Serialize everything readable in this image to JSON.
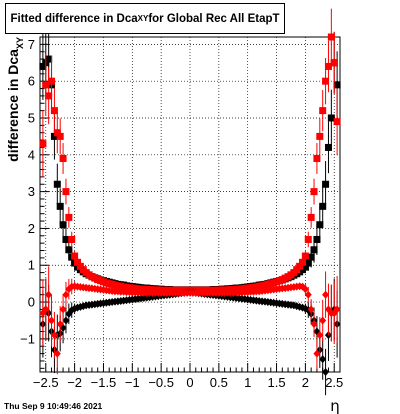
{
  "header": {
    "title_prefix": "Fitted difference in Dca",
    "title_sub": "XY",
    "title_suffix": " for Global Rec All EtapT"
  },
  "footer": {
    "timestamp": "Thu Sep  9 10:49:46 2021"
  },
  "chart_data": {
    "type": "scatter",
    "title": "Fitted difference in Dca_XY for Global Rec All EtapT",
    "xlabel": "η",
    "ylabel": "difference in Dca_XY",
    "xlim": [
      -2.6,
      2.6
    ],
    "ylim": [
      -1.9,
      7.2
    ],
    "x_ticks": [
      -2.5,
      -2,
      -1.5,
      -1,
      -0.5,
      0,
      0.5,
      1,
      1.5,
      2,
      2.5
    ],
    "x_tick_labels": [
      "−2.5",
      "−2",
      "−1.5",
      "−1",
      "−0.5",
      "0",
      "0.5",
      "1",
      "1.5",
      "2",
      "2.5"
    ],
    "y_ticks": [
      -1,
      0,
      1,
      2,
      3,
      4,
      5,
      6,
      7
    ],
    "y_tick_labels": [
      "−1",
      "0",
      "1",
      "2",
      "3",
      "4",
      "5",
      "6",
      "7"
    ],
    "grid": true,
    "series": [
      {
        "color": "#000000",
        "markers": "square",
        "x": [
          -2.55,
          -2.5,
          -2.45,
          -2.4,
          -2.35,
          -2.3,
          -2.25,
          -2.2,
          -2.15,
          -2.1,
          -2.05,
          -2.0,
          -1.95,
          -1.9,
          -1.85,
          -1.8,
          -1.75,
          -1.7,
          -1.65,
          -1.6,
          -1.55,
          -1.5,
          -1.45,
          -1.4,
          -1.35,
          -1.3,
          -1.25,
          -1.2,
          -1.15,
          -1.1,
          -1.05,
          -1.0,
          -0.95,
          -0.9,
          -0.85,
          -0.8,
          -0.75,
          -0.7,
          -0.65,
          -0.6,
          -0.55,
          -0.5,
          -0.45,
          -0.4,
          -0.35,
          -0.3,
          -0.25,
          -0.2,
          -0.15,
          -0.1,
          -0.05,
          0.0,
          0.05,
          0.1,
          0.15,
          0.2,
          0.25,
          0.3,
          0.35,
          0.4,
          0.45,
          0.5,
          0.55,
          0.6,
          0.65,
          0.7,
          0.75,
          0.8,
          0.85,
          0.9,
          0.95,
          1.0,
          1.05,
          1.1,
          1.15,
          1.2,
          1.25,
          1.3,
          1.35,
          1.4,
          1.45,
          1.5,
          1.55,
          1.6,
          1.65,
          1.7,
          1.75,
          1.8,
          1.85,
          1.9,
          1.95,
          2.0,
          2.05,
          2.1,
          2.15,
          2.2,
          2.25,
          2.3,
          2.35,
          2.4,
          2.45,
          2.5,
          2.55
        ],
        "y": [
          6.4,
          6.5,
          6.6,
          5.9,
          4.5,
          3.2,
          2.6,
          2.1,
          1.7,
          1.42,
          1.22,
          1.06,
          0.95,
          0.88,
          0.82,
          0.77,
          0.73,
          0.69,
          0.66,
          0.63,
          0.6,
          0.58,
          0.56,
          0.54,
          0.52,
          0.5,
          0.48,
          0.47,
          0.46,
          0.44,
          0.43,
          0.42,
          0.41,
          0.4,
          0.39,
          0.38,
          0.38,
          0.37,
          0.36,
          0.36,
          0.35,
          0.35,
          0.34,
          0.34,
          0.34,
          0.33,
          0.33,
          0.33,
          0.33,
          0.33,
          0.33,
          0.33,
          0.33,
          0.33,
          0.33,
          0.33,
          0.33,
          0.33,
          0.33,
          0.34,
          0.34,
          0.34,
          0.35,
          0.35,
          0.36,
          0.36,
          0.37,
          0.38,
          0.38,
          0.39,
          0.4,
          0.41,
          0.42,
          0.43,
          0.44,
          0.46,
          0.47,
          0.48,
          0.5,
          0.52,
          0.54,
          0.56,
          0.58,
          0.6,
          0.63,
          0.66,
          0.69,
          0.73,
          0.77,
          0.82,
          0.88,
          0.95,
          1.06,
          1.22,
          1.42,
          1.7,
          2.1,
          2.6,
          3.2,
          4.2,
          5.0,
          6.5,
          5.9
        ]
      },
      {
        "color": "#ff0000",
        "markers": "square",
        "x": [
          -2.55,
          -2.5,
          -2.45,
          -2.4,
          -2.35,
          -2.3,
          -2.25,
          -2.2,
          -2.15,
          -2.1,
          -2.05,
          -2.0,
          -1.95,
          -1.9,
          -1.85,
          -1.8,
          -1.75,
          -1.7,
          -1.65,
          -1.6,
          -1.55,
          -1.5,
          -1.45,
          -1.4,
          -1.35,
          -1.3,
          -1.25,
          -1.2,
          -1.15,
          -1.1,
          -1.05,
          -1.0,
          -0.95,
          -0.9,
          -0.85,
          -0.8,
          -0.75,
          -0.7,
          -0.65,
          -0.6,
          -0.55,
          -0.5,
          -0.45,
          -0.4,
          -0.35,
          -0.3,
          -0.25,
          -0.2,
          -0.15,
          -0.1,
          -0.05,
          0.0,
          0.05,
          0.1,
          0.15,
          0.2,
          0.25,
          0.3,
          0.35,
          0.4,
          0.45,
          0.5,
          0.55,
          0.6,
          0.65,
          0.7,
          0.75,
          0.8,
          0.85,
          0.9,
          0.95,
          1.0,
          1.05,
          1.1,
          1.15,
          1.2,
          1.25,
          1.3,
          1.35,
          1.4,
          1.45,
          1.5,
          1.55,
          1.6,
          1.65,
          1.7,
          1.75,
          1.8,
          1.85,
          1.9,
          1.95,
          2.0,
          2.05,
          2.1,
          2.15,
          2.2,
          2.25,
          2.3,
          2.35,
          2.4,
          2.45,
          2.5,
          2.55
        ],
        "y": [
          4.3,
          5.9,
          5.6,
          6.0,
          5.2,
          4.6,
          4.5,
          3.9,
          3.0,
          2.3,
          1.7,
          1.25,
          1.08,
          0.97,
          0.88,
          0.8,
          0.74,
          0.69,
          0.65,
          0.61,
          0.58,
          0.55,
          0.52,
          0.5,
          0.48,
          0.46,
          0.44,
          0.43,
          0.41,
          0.4,
          0.39,
          0.38,
          0.37,
          0.36,
          0.35,
          0.35,
          0.34,
          0.34,
          0.33,
          0.33,
          0.33,
          0.32,
          0.32,
          0.32,
          0.32,
          0.32,
          0.32,
          0.32,
          0.32,
          0.32,
          0.32,
          0.32,
          0.32,
          0.32,
          0.32,
          0.32,
          0.32,
          0.32,
          0.32,
          0.32,
          0.32,
          0.32,
          0.33,
          0.33,
          0.33,
          0.34,
          0.34,
          0.35,
          0.35,
          0.36,
          0.37,
          0.38,
          0.39,
          0.4,
          0.41,
          0.43,
          0.44,
          0.46,
          0.48,
          0.5,
          0.52,
          0.55,
          0.58,
          0.61,
          0.65,
          0.69,
          0.74,
          0.8,
          0.88,
          0.97,
          1.08,
          1.25,
          1.7,
          2.3,
          3.0,
          3.9,
          4.5,
          5.2,
          6.0,
          6.4,
          7.2,
          6.5,
          4.9
        ]
      },
      {
        "color": "#000000",
        "markers": "diamond",
        "x": [
          -2.55,
          -2.5,
          -2.45,
          -2.4,
          -2.35,
          -2.3,
          -2.25,
          -2.2,
          -2.15,
          -2.1,
          -2.05,
          -2.0,
          -1.95,
          -1.9,
          -1.85,
          -1.8,
          -1.75,
          -1.7,
          -1.65,
          -1.6,
          -1.55,
          -1.5,
          -1.45,
          -1.4,
          -1.35,
          -1.3,
          -1.25,
          -1.2,
          -1.15,
          -1.1,
          -1.05,
          -1.0,
          -0.95,
          -0.9,
          -0.85,
          -0.8,
          -0.75,
          -0.7,
          -0.65,
          -0.6,
          -0.55,
          -0.5,
          -0.45,
          -0.4,
          -0.35,
          -0.3,
          -0.25,
          -0.2,
          -0.15,
          -0.1,
          -0.05,
          0.0,
          0.05,
          0.1,
          0.15,
          0.2,
          0.25,
          0.3,
          0.35,
          0.4,
          0.45,
          0.5,
          0.55,
          0.6,
          0.65,
          0.7,
          0.75,
          0.8,
          0.85,
          0.9,
          0.95,
          1.0,
          1.05,
          1.1,
          1.15,
          1.2,
          1.25,
          1.3,
          1.35,
          1.4,
          1.45,
          1.5,
          1.55,
          1.6,
          1.65,
          1.7,
          1.75,
          1.8,
          1.85,
          1.9,
          1.95,
          2.0,
          2.05,
          2.1,
          2.15,
          2.2,
          2.25,
          2.3,
          2.35,
          2.4,
          2.45,
          2.5,
          2.55
        ],
        "y": [
          -0.6,
          -0.2,
          -0.3,
          -0.8,
          -1.3,
          -0.9,
          -0.85,
          -0.7,
          -0.5,
          -0.32,
          -0.22,
          -0.18,
          -0.15,
          -0.13,
          -0.11,
          -0.09,
          -0.08,
          -0.07,
          -0.06,
          -0.05,
          -0.04,
          -0.03,
          -0.02,
          -0.01,
          0.0,
          0.01,
          0.02,
          0.03,
          0.04,
          0.05,
          0.06,
          0.07,
          0.08,
          0.09,
          0.1,
          0.11,
          0.12,
          0.13,
          0.14,
          0.15,
          0.16,
          0.17,
          0.18,
          0.19,
          0.2,
          0.21,
          0.22,
          0.23,
          0.24,
          0.25,
          0.26,
          0.26,
          0.26,
          0.25,
          0.24,
          0.23,
          0.22,
          0.21,
          0.2,
          0.19,
          0.18,
          0.17,
          0.16,
          0.15,
          0.14,
          0.13,
          0.12,
          0.11,
          0.1,
          0.09,
          0.08,
          0.07,
          0.06,
          0.05,
          0.04,
          0.03,
          0.02,
          0.01,
          0.0,
          -0.01,
          -0.02,
          -0.03,
          -0.04,
          -0.05,
          -0.06,
          -0.07,
          -0.08,
          -0.09,
          -0.11,
          -0.13,
          -0.15,
          -0.18,
          -0.22,
          -0.32,
          -0.5,
          -0.8,
          -1.3,
          -1.55,
          -1.9,
          -0.9,
          -0.3,
          -0.2,
          -0.6
        ]
      },
      {
        "color": "#ff0000",
        "markers": "diamond",
        "x": [
          -2.55,
          -2.5,
          -2.45,
          -2.4,
          -2.35,
          -2.3,
          -2.25,
          -2.2,
          -2.15,
          -2.1,
          -2.05,
          -2.0,
          -1.95,
          -1.9,
          -1.85,
          -1.8,
          -1.75,
          -1.7,
          -1.65,
          -1.6,
          -1.55,
          -1.5,
          -1.45,
          -1.4,
          -1.35,
          -1.3,
          -1.25,
          -1.2,
          -1.15,
          -1.1,
          -1.05,
          -1.0,
          -0.95,
          -0.9,
          -0.85,
          -0.8,
          -0.75,
          -0.7,
          -0.65,
          -0.6,
          -0.55,
          -0.5,
          -0.45,
          -0.4,
          -0.35,
          -0.3,
          -0.25,
          -0.2,
          -0.15,
          -0.1,
          -0.05,
          0.0,
          0.05,
          0.1,
          0.15,
          0.2,
          0.25,
          0.3,
          0.35,
          0.4,
          0.45,
          0.5,
          0.55,
          0.6,
          0.65,
          0.7,
          0.75,
          0.8,
          0.85,
          0.9,
          0.95,
          1.0,
          1.05,
          1.1,
          1.15,
          1.2,
          1.25,
          1.3,
          1.35,
          1.4,
          1.45,
          1.5,
          1.55,
          1.6,
          1.65,
          1.7,
          1.75,
          1.8,
          1.85,
          1.9,
          1.95,
          2.0,
          2.05,
          2.1,
          2.15,
          2.2,
          2.25,
          2.3,
          2.35,
          2.4,
          2.45,
          2.5,
          2.55
        ],
        "y": [
          -0.3,
          -0.2,
          0.2,
          -0.5,
          -0.9,
          -1.4,
          -0.6,
          -0.2,
          0.2,
          0.35,
          0.42,
          0.43,
          0.42,
          0.41,
          0.4,
          0.39,
          0.38,
          0.37,
          0.36,
          0.35,
          0.34,
          0.33,
          0.32,
          0.31,
          0.3,
          0.29,
          0.29,
          0.28,
          0.28,
          0.27,
          0.27,
          0.26,
          0.26,
          0.26,
          0.25,
          0.25,
          0.25,
          0.25,
          0.25,
          0.25,
          0.25,
          0.25,
          0.25,
          0.25,
          0.25,
          0.25,
          0.25,
          0.25,
          0.25,
          0.25,
          0.25,
          0.25,
          0.25,
          0.25,
          0.25,
          0.25,
          0.25,
          0.25,
          0.25,
          0.25,
          0.25,
          0.25,
          0.25,
          0.25,
          0.25,
          0.25,
          0.25,
          0.26,
          0.26,
          0.26,
          0.27,
          0.27,
          0.28,
          0.28,
          0.29,
          0.29,
          0.3,
          0.31,
          0.32,
          0.33,
          0.34,
          0.35,
          0.36,
          0.37,
          0.38,
          0.39,
          0.4,
          0.41,
          0.42,
          0.43,
          0.42,
          0.35,
          0.2,
          -0.2,
          -0.6,
          -1.4,
          -0.9,
          -0.5,
          0.2,
          -0.2,
          -0.3,
          -0.3,
          -0.2
        ]
      }
    ]
  }
}
